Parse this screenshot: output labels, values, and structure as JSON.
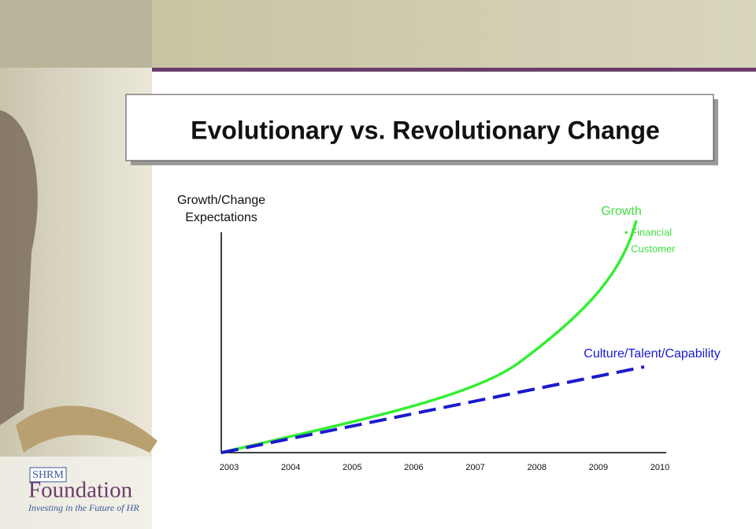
{
  "slide": {
    "title": "Evolutionary vs. Revolutionary Change",
    "y_axis_label": [
      "Growth/Change",
      "Expectations"
    ],
    "x_axis_labels": [
      "2003",
      "2004",
      "2005",
      "2006",
      "2007",
      "2008",
      "2009",
      "2010"
    ],
    "growth_label": "Growth",
    "growth_bullets": [
      "• Financial",
      "• Customer"
    ],
    "culture_label": "Culture/Talent/Capability"
  },
  "logo": {
    "brand_top": "SHRM",
    "brand": "Foundation",
    "tagline": "Investing in the Future of HR"
  }
}
